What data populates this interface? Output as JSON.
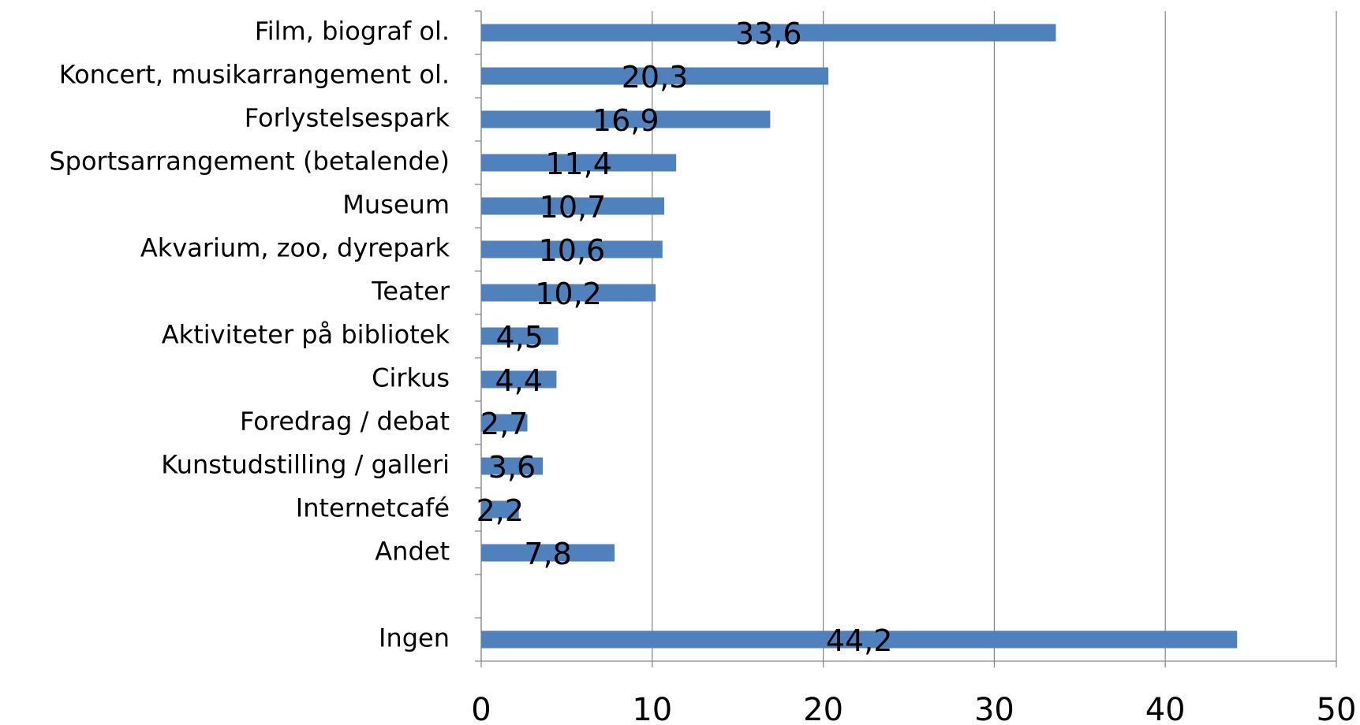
{
  "chart_data": {
    "type": "barh",
    "categories": [
      "Film, biograf ol.",
      "Koncert, musikarrangement ol.",
      "Forlystelsespark",
      "Sportsarrangement (betalende)",
      "Museum",
      "Akvarium, zoo, dyrepark",
      "Teater",
      "Aktiviteter på bibliotek",
      "Cirkus",
      "Foredrag / debat",
      "Kunstudstilling / galleri",
      "Internetcafé",
      "Andet",
      null,
      "Ingen"
    ],
    "values": [
      33.6,
      20.3,
      16.9,
      11.4,
      10.7,
      10.6,
      10.2,
      4.5,
      4.4,
      2.7,
      3.6,
      2.2,
      7.8,
      null,
      44.2
    ],
    "value_labels": [
      "33,6",
      "20,3",
      "16,9",
      "11,4",
      "10,7",
      "10,6",
      "10,2",
      "4,5",
      "4,4",
      "2,7",
      "3,6",
      "2,2",
      "7,8",
      null,
      "44,2"
    ],
    "color": "#4f81bd",
    "xlim": [
      0,
      50
    ],
    "xticks": [
      0,
      10,
      20,
      30,
      40,
      50
    ],
    "grid": true
  }
}
